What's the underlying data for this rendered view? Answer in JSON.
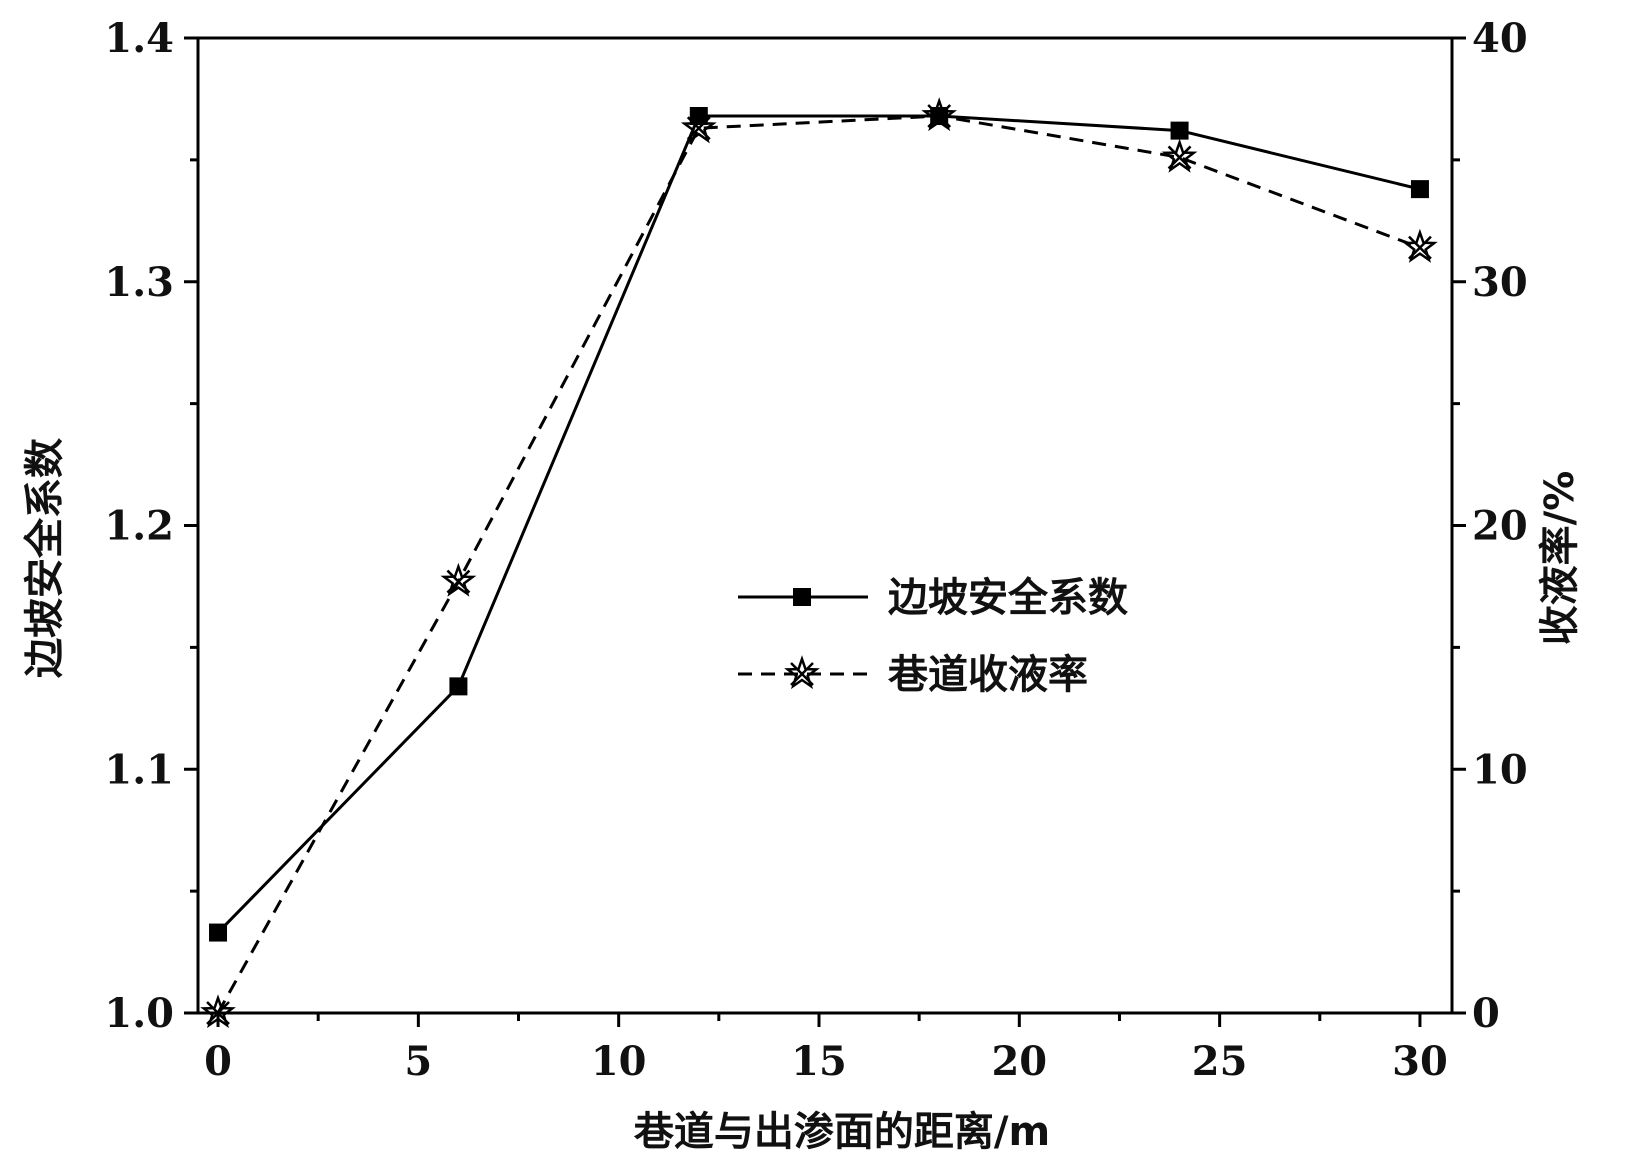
{
  "chart_data": {
    "type": "line",
    "title": "",
    "xlabel": "巷道与出渗面的距离/m",
    "ylabel_left": "边坡安全系数",
    "ylabel_right": "收液率/%",
    "x_ticks": [
      "0",
      "5",
      "10",
      "15",
      "20",
      "25",
      "30"
    ],
    "y_left_ticks": [
      "1.0",
      "1.1",
      "1.2",
      "1.3",
      "1.4"
    ],
    "y_right_ticks": [
      "0",
      "10",
      "20",
      "30",
      "40"
    ],
    "xlim": [
      -0.5,
      30.8
    ],
    "ylim_left": [
      1.0,
      1.4
    ],
    "ylim_right": [
      0,
      40
    ],
    "grid": false,
    "legend_position": "center-right",
    "series": [
      {
        "name": "边坡安全系数",
        "axis": "left",
        "line_style": "solid",
        "marker": "square",
        "color": "#000000",
        "x": [
          0,
          6,
          12,
          18,
          24,
          30
        ],
        "y": [
          1.033,
          1.134,
          1.368,
          1.368,
          1.362,
          1.338
        ]
      },
      {
        "name": "巷道收液率",
        "axis": "right",
        "line_style": "dashed",
        "marker": "star",
        "color": "#000000",
        "x": [
          0,
          6,
          12,
          18,
          24,
          30
        ],
        "y": [
          0,
          17.7,
          36.3,
          36.8,
          35.1,
          31.4
        ]
      }
    ]
  }
}
